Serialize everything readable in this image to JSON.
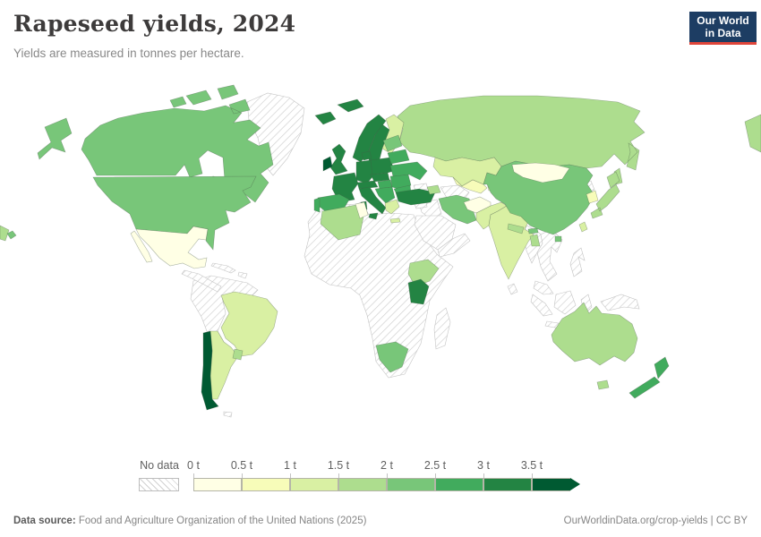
{
  "header": {
    "title": "Rapeseed yields, 2024",
    "subtitle": "Yields are measured in tonnes per hectare.",
    "logo": {
      "line1": "Our World",
      "line2": "in Data",
      "bg_color": "#1d3d63",
      "accent_color": "#e0453a"
    }
  },
  "legend": {
    "no_data_label": "No data"
  },
  "footer": {
    "source_label": "Data source:",
    "source_text": " Food and Agriculture Organization of the United Nations (2025)",
    "link_text": "OurWorldinData.org/crop-yields | CC BY"
  },
  "chart_data": {
    "type": "choropleth_map",
    "title": "Rapeseed yields, 2024",
    "unit": "tonnes per hectare",
    "year": "2024",
    "legend_tick_labels": [
      "0 t",
      "0.5 t",
      "1 t",
      "1.5 t",
      "2 t",
      "2.5 t",
      "3 t",
      "3.5 t"
    ],
    "bins": [
      {
        "range": "0-0.5 t",
        "color": "#ffffe5"
      },
      {
        "range": "0.5-1 t",
        "color": "#f7fcb9"
      },
      {
        "range": "1-1.5 t",
        "color": "#d9f0a3"
      },
      {
        "range": "1.5-2 t",
        "color": "#addd8e"
      },
      {
        "range": "2-2.5 t",
        "color": "#78c679"
      },
      {
        "range": "2.5-3 t",
        "color": "#41ab5d"
      },
      {
        "range": "3-3.5 t",
        "color": "#238443"
      },
      {
        "range": "3.5+ t",
        "color": "#005a32"
      }
    ],
    "no_data_style": "hatched",
    "regions": [
      {
        "id": "russia",
        "name": "Russia",
        "value": "1.5-2 t",
        "color": "#addd8e"
      },
      {
        "id": "africa-no-data",
        "name": "Africa (no data countries)",
        "value": "No data",
        "color": "no-data"
      },
      {
        "id": "nw-south-america",
        "name": "Northwestern South America (no data)",
        "value": "No data",
        "color": "no-data"
      },
      {
        "id": "greenland",
        "name": "Greenland",
        "value": "No data",
        "color": "no-data"
      },
      {
        "id": "central-america",
        "name": "Central America",
        "value": "No data",
        "color": "no-data"
      },
      {
        "id": "cuba-caribbean",
        "name": "Cuba & Caribbean",
        "value": "No data",
        "color": "no-data"
      },
      {
        "id": "hispaniola",
        "name": "Hispaniola",
        "value": "No data",
        "color": "no-data"
      },
      {
        "id": "falkland-islands",
        "name": "Falkland Islands",
        "value": "No data",
        "color": "no-data"
      },
      {
        "id": "madagascar",
        "name": "Madagascar",
        "value": "No data",
        "color": "no-data"
      },
      {
        "id": "georgia",
        "name": "Georgia",
        "value": "No data",
        "color": "no-data"
      },
      {
        "id": "iraq",
        "name": "Iraq",
        "value": "No data",
        "color": "no-data"
      },
      {
        "id": "syria",
        "name": "Syria",
        "value": "No data",
        "color": "no-data"
      },
      {
        "id": "saudi-arabia",
        "name": "Saudi Arabia",
        "value": "No data",
        "color": "no-data"
      },
      {
        "id": "yemen-oman",
        "name": "Yemen & Oman",
        "value": "No data",
        "color": "no-data"
      },
      {
        "id": "turkmenistan",
        "name": "Turkmenistan",
        "value": "No data",
        "color": "no-data"
      },
      {
        "id": "sri-lanka",
        "name": "Sri Lanka",
        "value": "No data",
        "color": "no-data"
      },
      {
        "id": "north-korea",
        "name": "North Korea",
        "value": "No data",
        "color": "no-data"
      },
      {
        "id": "myanmar",
        "name": "Myanmar",
        "value": "No data",
        "color": "no-data"
      },
      {
        "id": "indochina",
        "name": "Thailand, Laos, Vietnam & Cambodia",
        "value": "No data",
        "color": "no-data"
      },
      {
        "id": "malaysia-indonesia",
        "name": "Malaysia & Indonesia",
        "value": "No data",
        "color": "no-data"
      },
      {
        "id": "philippines",
        "name": "Philippines",
        "value": "No data",
        "color": "no-data"
      },
      {
        "id": "new-guinea",
        "name": "New Guinea",
        "value": "No data",
        "color": "no-data"
      },
      {
        "id": "canada",
        "name": "Canada",
        "value": "2-2.5 t",
        "color": "#78c679"
      },
      {
        "id": "united-states",
        "name": "United States",
        "value": "2-2.5 t",
        "color": "#78c679"
      },
      {
        "id": "mexico",
        "name": "Mexico",
        "value": "0-0.5 t",
        "color": "#ffffe5"
      },
      {
        "id": "brazil",
        "name": "Brazil",
        "value": "1-1.5 t",
        "color": "#d9f0a3"
      },
      {
        "id": "argentina",
        "name": "Argentina",
        "value": "1-1.5 t",
        "color": "#d9f0a3"
      },
      {
        "id": "chile",
        "name": "Chile",
        "value": "3.5+ t",
        "color": "#005a32"
      },
      {
        "id": "uruguay",
        "name": "Uruguay",
        "value": "1.5-2 t",
        "color": "#addd8e"
      },
      {
        "id": "iceland",
        "name": "Iceland",
        "value": "3-3.5 t",
        "color": "#238443"
      },
      {
        "id": "norway",
        "name": "Norway",
        "value": "3-3.5 t",
        "color": "#238443"
      },
      {
        "id": "sweden",
        "name": "Sweden",
        "value": "3-3.5 t",
        "color": "#238443"
      },
      {
        "id": "finland",
        "name": "Finland",
        "value": "1-1.5 t",
        "color": "#d9f0a3"
      },
      {
        "id": "united-kingdom",
        "name": "United Kingdom",
        "value": "3-3.5 t",
        "color": "#238443"
      },
      {
        "id": "ireland",
        "name": "Ireland",
        "value": "3.5+ t",
        "color": "#005a32"
      },
      {
        "id": "denmark",
        "name": "Denmark",
        "value": "3-3.5 t",
        "color": "#238443"
      },
      {
        "id": "germany",
        "name": "Germany",
        "value": "3-3.5 t",
        "color": "#238443"
      },
      {
        "id": "france",
        "name": "France",
        "value": "3-3.5 t",
        "color": "#238443"
      },
      {
        "id": "spain",
        "name": "Spain",
        "value": "2.5-3 t",
        "color": "#41ab5d"
      },
      {
        "id": "portugal",
        "name": "Portugal",
        "value": "2.5-3 t",
        "color": "#41ab5d"
      },
      {
        "id": "switzerland-austria",
        "name": "Switzerland & Austria",
        "value": "3-3.5 t",
        "color": "#238443"
      },
      {
        "id": "italy",
        "name": "Italy",
        "value": "3-3.5 t",
        "color": "#238443"
      },
      {
        "id": "czechia-slovakia",
        "name": "Czechia & Slovakia",
        "value": "3-3.5 t",
        "color": "#238443"
      },
      {
        "id": "poland",
        "name": "Poland",
        "value": "3-3.5 t",
        "color": "#238443"
      },
      {
        "id": "hungary",
        "name": "Hungary",
        "value": "2.5-3 t",
        "color": "#41ab5d"
      },
      {
        "id": "balkans",
        "name": "Western Balkans",
        "value": "2.5-3 t",
        "color": "#41ab5d"
      },
      {
        "id": "greece",
        "name": "Greece",
        "value": "1-1.5 t",
        "color": "#d9f0a3"
      },
      {
        "id": "romania",
        "name": "Romania",
        "value": "2.5-3 t",
        "color": "#41ab5d"
      },
      {
        "id": "bulgaria",
        "name": "Bulgaria",
        "value": "2.5-3 t",
        "color": "#41ab5d"
      },
      {
        "id": "ukraine",
        "name": "Ukraine",
        "value": "2.5-3 t",
        "color": "#41ab5d"
      },
      {
        "id": "belarus",
        "name": "Belarus",
        "value": "2.5-3 t",
        "color": "#41ab5d"
      },
      {
        "id": "baltic-states",
        "name": "Baltic States",
        "value": "2-2.5 t",
        "color": "#78c679"
      },
      {
        "id": "turkey",
        "name": "Turkey",
        "value": "3-3.5 t",
        "color": "#238443"
      },
      {
        "id": "azerbaijan",
        "name": "Azerbaijan",
        "value": "1.5-2 t",
        "color": "#addd8e"
      },
      {
        "id": "kazakhstan",
        "name": "Kazakhstan",
        "value": "1-1.5 t",
        "color": "#d9f0a3"
      },
      {
        "id": "uzbekistan",
        "name": "Uzbekistan",
        "value": "0.5-1 t",
        "color": "#f7fcb9"
      },
      {
        "id": "kyrgyzstan-tajikistan",
        "name": "Kyrgyzstan & Tajikistan",
        "value": "0.5-1 t",
        "color": "#f7fcb9"
      },
      {
        "id": "iran",
        "name": "Iran",
        "value": "2-2.5 t",
        "color": "#78c679"
      },
      {
        "id": "afghanistan",
        "name": "Afghanistan",
        "value": "0-0.5 t",
        "color": "#ffffe5"
      },
      {
        "id": "pakistan",
        "name": "Pakistan",
        "value": "1-1.5 t",
        "color": "#d9f0a3"
      },
      {
        "id": "india",
        "name": "India",
        "value": "1-1.5 t",
        "color": "#d9f0a3"
      },
      {
        "id": "nepal",
        "name": "Nepal",
        "value": "1.5-2 t",
        "color": "#addd8e"
      },
      {
        "id": "bhutan",
        "name": "Bhutan",
        "value": "2-2.5 t",
        "color": "#78c679"
      },
      {
        "id": "bangladesh",
        "name": "Bangladesh",
        "value": "1.5-2 t",
        "color": "#addd8e"
      },
      {
        "id": "china",
        "name": "China",
        "value": "2-2.5 t",
        "color": "#78c679"
      },
      {
        "id": "mongolia",
        "name": "Mongolia",
        "value": "0-0.5 t",
        "color": "#ffffe5"
      },
      {
        "id": "taiwan",
        "name": "Taiwan",
        "value": "1-1.5 t",
        "color": "#d9f0a3"
      },
      {
        "id": "south-korea",
        "name": "South Korea",
        "value": "0.5-1 t",
        "color": "#f7fcb9"
      },
      {
        "id": "japan",
        "name": "Japan",
        "value": "1.5-2 t",
        "color": "#addd8e"
      },
      {
        "id": "algeria",
        "name": "Algeria",
        "value": "1.5-2 t",
        "color": "#addd8e"
      },
      {
        "id": "tunisia",
        "name": "Tunisia",
        "value": "0-0.5 t",
        "color": "#ffffe5"
      },
      {
        "id": "ethiopia",
        "name": "Ethiopia",
        "value": "1.5-2 t",
        "color": "#addd8e"
      },
      {
        "id": "kenya",
        "name": "Kenya",
        "value": "3-3.5 t",
        "color": "#238443"
      },
      {
        "id": "south-africa",
        "name": "South Africa",
        "value": "2-2.5 t",
        "color": "#78c679"
      },
      {
        "id": "australia",
        "name": "Australia",
        "value": "1.5-2 t",
        "color": "#addd8e"
      },
      {
        "id": "new-zealand",
        "name": "New Zealand",
        "value": "2.5-3 t",
        "color": "#41ab5d"
      }
    ]
  }
}
